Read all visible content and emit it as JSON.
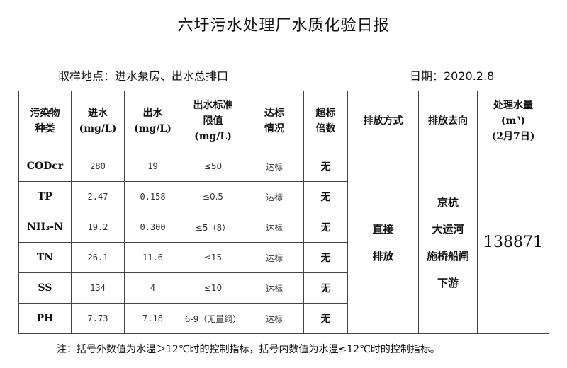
{
  "title": "六圩污水处理厂水质化验日报",
  "location": "取样地点：进水泵房、出水总排口",
  "date": "日期：2020.2.8",
  "headers": [
    "污染物种类",
    "进水(mg/L)",
    "出水(mg/L)",
    "出水标准限值(mg/L)",
    "达标情况",
    "超标倍数",
    "排放方式",
    "排放去向",
    "处理水量(m³)(2月7日)"
  ],
  "header_lines": [
    [
      "污染物",
      "种类"
    ],
    [
      "进水",
      "(mg/L)"
    ],
    [
      "出水",
      "(mg/L)"
    ],
    [
      "出水标准",
      "限值",
      "(mg/L)"
    ],
    [
      "达标",
      "情况"
    ],
    [
      "超标",
      "倍数"
    ],
    [
      "排放方式"
    ],
    [
      "排放去向"
    ],
    [
      "处理水量",
      "(m³)",
      "(2月7日)"
    ]
  ],
  "rows": [
    {
      "pollutant": "CODcr",
      "influent": "280",
      "effluent": "19",
      "limit": "≤50",
      "status": "达标",
      "exceed": "无"
    },
    {
      "pollutant": "TP",
      "influent": "2.47",
      "effluent": "0.158",
      "limit": "≤0.5",
      "status": "达标",
      "exceed": "无"
    },
    {
      "pollutant": "NH₃-N",
      "influent": "19.2",
      "effluent": "0.300",
      "limit": "≤5（8）",
      "status": "达标",
      "exceed": "无"
    },
    {
      "pollutant": "TN",
      "influent": "26.1",
      "effluent": "11.6",
      "limit": "≤15",
      "status": "达标",
      "exceed": "无"
    },
    {
      "pollutant": "SS",
      "influent": "134",
      "effluent": "4",
      "limit": "≤10",
      "status": "达标",
      "exceed": "无"
    },
    {
      "pollutant": "PH",
      "influent": "7.73",
      "effluent": "7.18",
      "limit": "6-9（无量纲）",
      "status": "达标",
      "exceed": "无"
    }
  ],
  "discharge_method": [
    "直接",
    "排放"
  ],
  "discharge_destination": [
    "京杭",
    "大运河",
    "施桥船闸",
    "下游"
  ],
  "treated_volume": "138871",
  "note": "注：括号外数值为水温＞12℃时的控制指标，括号内数值为水温≤12℃时的控制指标。"
}
